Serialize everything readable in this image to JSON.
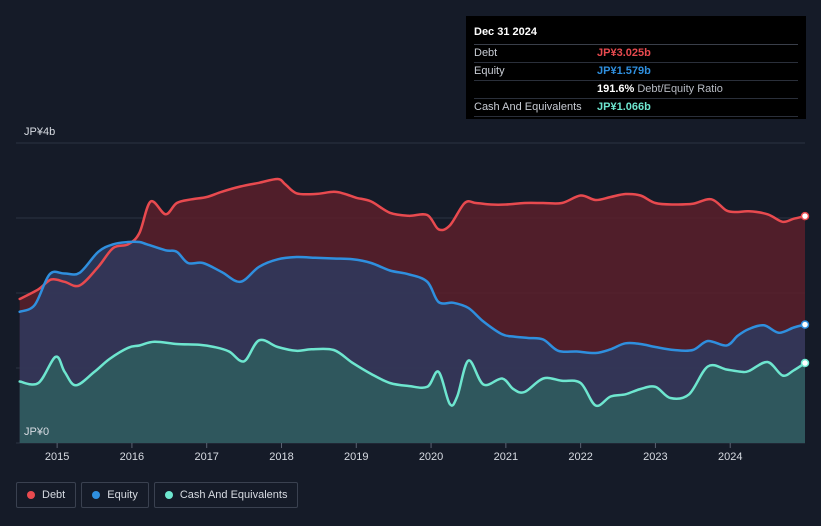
{
  "colors": {
    "debt": "#e84a4f",
    "equity": "#2f8fde",
    "cash": "#6ee6cf",
    "grid": "#2c3342",
    "axis_text": "#d7dbe2"
  },
  "tooltip": {
    "date": "Dec 31 2024",
    "rows": [
      {
        "label": "Debt",
        "value": "JP¥3.025b"
      },
      {
        "label": "Equity",
        "value": "JP¥1.579b"
      },
      {
        "label": "",
        "value": "191.6%",
        "suffix": "Debt/Equity Ratio"
      },
      {
        "label": "Cash And Equivalents",
        "value": "JP¥1.066b"
      }
    ]
  },
  "legend": [
    {
      "name": "Debt"
    },
    {
      "name": "Equity"
    },
    {
      "name": "Cash And Equivalents"
    }
  ],
  "chart_data": {
    "type": "area",
    "ylim": [
      0,
      4
    ],
    "y_tick_labels": [
      "JP¥4b",
      "JP¥0"
    ],
    "x_ticks": [
      2015,
      2016,
      2017,
      2018,
      2019,
      2020,
      2021,
      2022,
      2023,
      2024
    ],
    "xlim": [
      2014.45,
      2025.0
    ],
    "grid": true,
    "series": [
      {
        "name": "Debt",
        "points": [
          [
            2014.5,
            1.92
          ],
          [
            2014.75,
            2.05
          ],
          [
            2014.92,
            2.18
          ],
          [
            2015.1,
            2.15
          ],
          [
            2015.3,
            2.1
          ],
          [
            2015.55,
            2.35
          ],
          [
            2015.75,
            2.6
          ],
          [
            2015.95,
            2.65
          ],
          [
            2016.1,
            2.8
          ],
          [
            2016.25,
            3.22
          ],
          [
            2016.45,
            3.05
          ],
          [
            2016.6,
            3.2
          ],
          [
            2016.8,
            3.25
          ],
          [
            2017.0,
            3.28
          ],
          [
            2017.2,
            3.35
          ],
          [
            2017.45,
            3.42
          ],
          [
            2017.7,
            3.47
          ],
          [
            2017.95,
            3.52
          ],
          [
            2018.05,
            3.45
          ],
          [
            2018.2,
            3.33
          ],
          [
            2018.45,
            3.32
          ],
          [
            2018.7,
            3.35
          ],
          [
            2018.85,
            3.32
          ],
          [
            2019.0,
            3.27
          ],
          [
            2019.2,
            3.22
          ],
          [
            2019.45,
            3.07
          ],
          [
            2019.7,
            3.03
          ],
          [
            2019.95,
            3.04
          ],
          [
            2020.1,
            2.85
          ],
          [
            2020.25,
            2.9
          ],
          [
            2020.45,
            3.2
          ],
          [
            2020.6,
            3.2
          ],
          [
            2020.8,
            3.18
          ],
          [
            2021.0,
            3.18
          ],
          [
            2021.25,
            3.2
          ],
          [
            2021.5,
            3.2
          ],
          [
            2021.75,
            3.2
          ],
          [
            2022.0,
            3.3
          ],
          [
            2022.2,
            3.24
          ],
          [
            2022.4,
            3.28
          ],
          [
            2022.6,
            3.32
          ],
          [
            2022.8,
            3.3
          ],
          [
            2023.0,
            3.2
          ],
          [
            2023.25,
            3.18
          ],
          [
            2023.5,
            3.19
          ],
          [
            2023.75,
            3.25
          ],
          [
            2023.95,
            3.1
          ],
          [
            2024.1,
            3.08
          ],
          [
            2024.25,
            3.09
          ],
          [
            2024.5,
            3.05
          ],
          [
            2024.7,
            2.95
          ],
          [
            2024.85,
            2.99
          ],
          [
            2025.0,
            3.025
          ]
        ]
      },
      {
        "name": "Equity",
        "points": [
          [
            2014.5,
            1.75
          ],
          [
            2014.7,
            1.84
          ],
          [
            2014.9,
            2.25
          ],
          [
            2015.1,
            2.26
          ],
          [
            2015.3,
            2.27
          ],
          [
            2015.55,
            2.55
          ],
          [
            2015.75,
            2.65
          ],
          [
            2015.95,
            2.68
          ],
          [
            2016.1,
            2.68
          ],
          [
            2016.2,
            2.65
          ],
          [
            2016.45,
            2.57
          ],
          [
            2016.6,
            2.55
          ],
          [
            2016.75,
            2.4
          ],
          [
            2016.95,
            2.4
          ],
          [
            2017.2,
            2.28
          ],
          [
            2017.45,
            2.15
          ],
          [
            2017.7,
            2.35
          ],
          [
            2017.95,
            2.45
          ],
          [
            2018.2,
            2.48
          ],
          [
            2018.45,
            2.47
          ],
          [
            2018.7,
            2.46
          ],
          [
            2018.95,
            2.45
          ],
          [
            2019.2,
            2.4
          ],
          [
            2019.45,
            2.3
          ],
          [
            2019.7,
            2.25
          ],
          [
            2019.95,
            2.15
          ],
          [
            2020.1,
            1.88
          ],
          [
            2020.3,
            1.87
          ],
          [
            2020.5,
            1.8
          ],
          [
            2020.7,
            1.62
          ],
          [
            2020.95,
            1.45
          ],
          [
            2021.1,
            1.42
          ],
          [
            2021.3,
            1.4
          ],
          [
            2021.5,
            1.38
          ],
          [
            2021.7,
            1.23
          ],
          [
            2021.95,
            1.22
          ],
          [
            2022.2,
            1.2
          ],
          [
            2022.4,
            1.25
          ],
          [
            2022.6,
            1.33
          ],
          [
            2022.8,
            1.32
          ],
          [
            2023.0,
            1.28
          ],
          [
            2023.25,
            1.24
          ],
          [
            2023.5,
            1.24
          ],
          [
            2023.7,
            1.36
          ],
          [
            2023.95,
            1.3
          ],
          [
            2024.1,
            1.43
          ],
          [
            2024.25,
            1.52
          ],
          [
            2024.45,
            1.57
          ],
          [
            2024.65,
            1.47
          ],
          [
            2024.85,
            1.54
          ],
          [
            2025.0,
            1.579
          ]
        ]
      },
      {
        "name": "Cash And Equivalents",
        "points": [
          [
            2014.5,
            0.82
          ],
          [
            2014.75,
            0.8
          ],
          [
            2014.98,
            1.15
          ],
          [
            2015.1,
            0.95
          ],
          [
            2015.25,
            0.77
          ],
          [
            2015.5,
            0.95
          ],
          [
            2015.7,
            1.12
          ],
          [
            2015.95,
            1.27
          ],
          [
            2016.1,
            1.3
          ],
          [
            2016.3,
            1.35
          ],
          [
            2016.6,
            1.32
          ],
          [
            2016.9,
            1.31
          ],
          [
            2017.1,
            1.28
          ],
          [
            2017.3,
            1.22
          ],
          [
            2017.5,
            1.09
          ],
          [
            2017.7,
            1.37
          ],
          [
            2017.95,
            1.28
          ],
          [
            2018.2,
            1.23
          ],
          [
            2018.4,
            1.25
          ],
          [
            2018.7,
            1.24
          ],
          [
            2018.95,
            1.07
          ],
          [
            2019.2,
            0.92
          ],
          [
            2019.45,
            0.8
          ],
          [
            2019.7,
            0.76
          ],
          [
            2019.95,
            0.75
          ],
          [
            2020.1,
            0.95
          ],
          [
            2020.25,
            0.52
          ],
          [
            2020.35,
            0.62
          ],
          [
            2020.5,
            1.1
          ],
          [
            2020.7,
            0.78
          ],
          [
            2020.95,
            0.86
          ],
          [
            2021.1,
            0.72
          ],
          [
            2021.25,
            0.68
          ],
          [
            2021.5,
            0.86
          ],
          [
            2021.75,
            0.83
          ],
          [
            2022.0,
            0.8
          ],
          [
            2022.2,
            0.5
          ],
          [
            2022.4,
            0.62
          ],
          [
            2022.6,
            0.65
          ],
          [
            2022.8,
            0.72
          ],
          [
            2023.0,
            0.75
          ],
          [
            2023.2,
            0.6
          ],
          [
            2023.45,
            0.65
          ],
          [
            2023.7,
            1.02
          ],
          [
            2023.95,
            0.98
          ],
          [
            2024.15,
            0.95
          ],
          [
            2024.25,
            0.96
          ],
          [
            2024.5,
            1.08
          ],
          [
            2024.7,
            0.9
          ],
          [
            2024.85,
            0.97
          ],
          [
            2025.0,
            1.066
          ]
        ]
      }
    ]
  }
}
